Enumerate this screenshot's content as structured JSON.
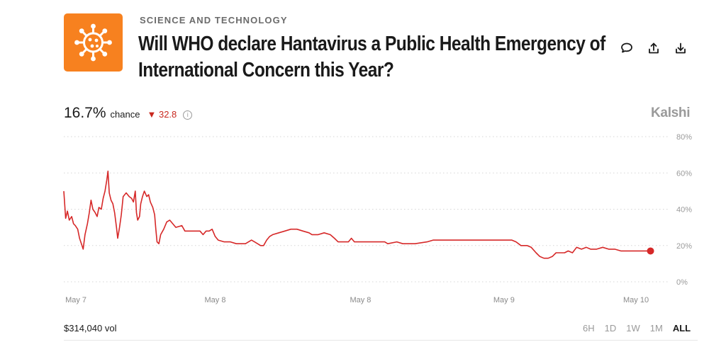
{
  "market": {
    "category": "SCIENCE AND TECHNOLOGY",
    "title_line1": "Will WHO declare Hantavirus a Public Health Emergency of",
    "title_line2": "International Concern this Year?",
    "icon": "virus-icon",
    "accent_color": "#f7811f"
  },
  "actions": [
    {
      "name": "comment-icon"
    },
    {
      "name": "share-icon"
    },
    {
      "name": "download-icon"
    }
  ],
  "stats": {
    "chance_value": "16.7%",
    "chance_label": "chance",
    "change_arrow": "▼",
    "change_value": "32.8",
    "info_glyph": "i",
    "change_color": "#c8281f"
  },
  "brand": "Kalshi",
  "volume": "$314,040 vol",
  "time_ranges": [
    {
      "label": "6H",
      "active": false
    },
    {
      "label": "1D",
      "active": false
    },
    {
      "label": "1W",
      "active": false
    },
    {
      "label": "1M",
      "active": false
    },
    {
      "label": "ALL",
      "active": true
    }
  ],
  "chart_data": {
    "type": "line",
    "title": "",
    "xlabel": "",
    "ylabel": "",
    "ylim": [
      0,
      80
    ],
    "yticks": [
      0,
      20,
      40,
      60,
      80
    ],
    "ytick_labels": [
      "0%",
      "20%",
      "40%",
      "60%",
      "80%"
    ],
    "y_axis_side": "right",
    "grid": "horizontal dotted",
    "xlim": [
      0,
      100
    ],
    "xticks": [
      {
        "x": 2,
        "label": "May 7"
      },
      {
        "x": 25,
        "label": "May 8"
      },
      {
        "x": 49,
        "label": "May 8"
      },
      {
        "x": 72.7,
        "label": "May 9"
      },
      {
        "x": 94.5,
        "label": "May 10"
      }
    ],
    "line_color": "#d62828",
    "series": [
      {
        "values": [
          [
            0,
            50
          ],
          [
            0.3,
            35
          ],
          [
            0.6,
            39
          ],
          [
            0.9,
            34
          ],
          [
            1.3,
            36
          ],
          [
            1.6,
            32
          ],
          [
            1.9,
            31
          ],
          [
            2.3,
            29
          ],
          [
            2.6,
            24
          ],
          [
            2.9,
            21
          ],
          [
            3.2,
            18
          ],
          [
            3.5,
            26
          ],
          [
            3.9,
            32
          ],
          [
            4.2,
            38
          ],
          [
            4.5,
            45
          ],
          [
            4.8,
            40
          ],
          [
            5.2,
            38
          ],
          [
            5.5,
            36
          ],
          [
            5.8,
            41
          ],
          [
            6.2,
            40
          ],
          [
            6.5,
            46
          ],
          [
            6.8,
            50
          ],
          [
            7.1,
            56
          ],
          [
            7.3,
            61
          ],
          [
            7.5,
            49
          ],
          [
            7.8,
            45
          ],
          [
            8.1,
            43
          ],
          [
            8.4,
            38
          ],
          [
            8.7,
            30
          ],
          [
            8.9,
            24
          ],
          [
            9.2,
            30
          ],
          [
            9.5,
            37
          ],
          [
            9.8,
            47
          ],
          [
            10.3,
            49
          ],
          [
            10.8,
            47
          ],
          [
            11.2,
            46
          ],
          [
            11.5,
            44
          ],
          [
            11.8,
            50
          ],
          [
            12.0,
            38
          ],
          [
            12.2,
            34
          ],
          [
            12.5,
            36
          ],
          [
            12.7,
            43
          ],
          [
            13.0,
            47
          ],
          [
            13.3,
            50
          ],
          [
            13.7,
            47
          ],
          [
            14.0,
            48
          ],
          [
            14.3,
            44
          ],
          [
            14.7,
            41
          ],
          [
            15.0,
            37
          ],
          [
            15.2,
            29
          ],
          [
            15.4,
            22
          ],
          [
            15.7,
            21
          ],
          [
            16.0,
            26
          ],
          [
            16.5,
            29
          ],
          [
            17.0,
            33
          ],
          [
            17.5,
            34
          ],
          [
            18.0,
            32
          ],
          [
            18.5,
            30
          ],
          [
            19.5,
            31
          ],
          [
            20.0,
            28
          ],
          [
            21.0,
            28
          ],
          [
            22.0,
            28
          ],
          [
            22.5,
            28
          ],
          [
            23.0,
            26
          ],
          [
            23.5,
            28
          ],
          [
            24.0,
            28
          ],
          [
            24.5,
            29
          ],
          [
            25.0,
            25
          ],
          [
            25.5,
            23
          ],
          [
            26.5,
            22
          ],
          [
            27.5,
            22
          ],
          [
            28.5,
            21
          ],
          [
            29.5,
            21
          ],
          [
            30.0,
            21
          ],
          [
            31.0,
            23
          ],
          [
            31.5,
            22
          ],
          [
            32.5,
            20
          ],
          [
            33.0,
            20
          ],
          [
            33.5,
            23
          ],
          [
            34.0,
            25
          ],
          [
            34.5,
            26
          ],
          [
            35.5,
            27
          ],
          [
            36.5,
            28
          ],
          [
            37.5,
            29
          ],
          [
            38.5,
            29
          ],
          [
            39.5,
            28
          ],
          [
            40.5,
            27
          ],
          [
            41.0,
            26
          ],
          [
            42.0,
            26
          ],
          [
            43.0,
            27
          ],
          [
            44.0,
            26
          ],
          [
            44.7,
            24
          ],
          [
            45.3,
            22
          ],
          [
            46.3,
            22
          ],
          [
            47.0,
            22
          ],
          [
            47.5,
            24
          ],
          [
            48.0,
            22
          ],
          [
            49.0,
            22
          ],
          [
            50.0,
            22
          ],
          [
            51.0,
            22
          ],
          [
            52.0,
            22
          ],
          [
            53.0,
            22
          ],
          [
            53.5,
            21
          ],
          [
            55.0,
            22
          ],
          [
            56.0,
            21
          ],
          [
            58.0,
            21
          ],
          [
            60.0,
            22
          ],
          [
            61.0,
            23
          ],
          [
            62.0,
            23
          ],
          [
            64.0,
            23
          ],
          [
            66.0,
            23
          ],
          [
            68.0,
            23
          ],
          [
            70.0,
            23
          ],
          [
            72.0,
            23
          ],
          [
            74.0,
            23
          ],
          [
            74.7,
            22
          ],
          [
            75.5,
            20
          ],
          [
            76.5,
            20
          ],
          [
            77.2,
            19
          ],
          [
            78.0,
            16
          ],
          [
            78.6,
            14
          ],
          [
            79.3,
            13
          ],
          [
            80.0,
            13
          ],
          [
            80.7,
            14
          ],
          [
            81.3,
            16
          ],
          [
            82.0,
            16
          ],
          [
            82.7,
            16
          ],
          [
            83.3,
            17
          ],
          [
            84.0,
            16
          ],
          [
            84.7,
            19
          ],
          [
            85.5,
            18
          ],
          [
            86.3,
            19
          ],
          [
            87.0,
            18
          ],
          [
            88.0,
            18
          ],
          [
            89.0,
            19
          ],
          [
            90.0,
            18
          ],
          [
            91.0,
            18
          ],
          [
            92.0,
            17
          ],
          [
            93.0,
            17
          ],
          [
            94.0,
            17
          ],
          [
            95.0,
            17
          ],
          [
            96.0,
            17
          ],
          [
            96.9,
            17
          ]
        ]
      }
    ],
    "end_marker": {
      "x": 96.9,
      "y": 17
    }
  }
}
